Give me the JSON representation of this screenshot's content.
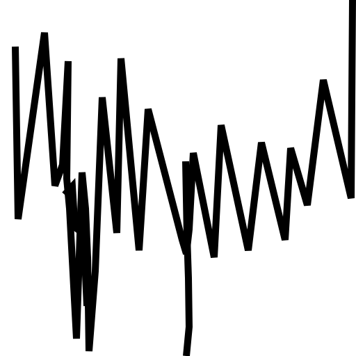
{
  "drawing": {
    "background_color": "#ffffff",
    "ink_color": "#000000"
  }
}
